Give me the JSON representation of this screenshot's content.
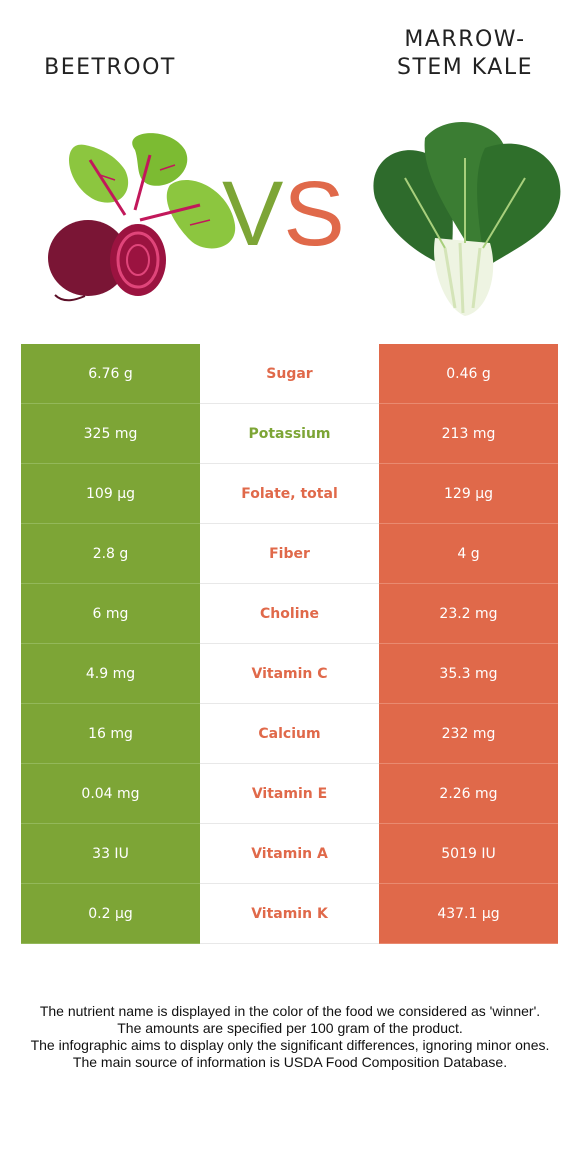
{
  "foods": {
    "left": {
      "name": "BEETROOT",
      "color": "#7da536"
    },
    "right": {
      "name_line1": "MARROW-",
      "name_line2": "STEM KALE",
      "color": "#e0694a"
    }
  },
  "vs": {
    "v": "V",
    "s": "S"
  },
  "rows": [
    {
      "nutrient": "Sugar",
      "left": "6.76 g",
      "right": "0.46 g",
      "winner": "right"
    },
    {
      "nutrient": "Potassium",
      "left": "325 mg",
      "right": "213 mg",
      "winner": "left"
    },
    {
      "nutrient": "Folate, total",
      "left": "109 µg",
      "right": "129 µg",
      "winner": "right"
    },
    {
      "nutrient": "Fiber",
      "left": "2.8 g",
      "right": "4 g",
      "winner": "right"
    },
    {
      "nutrient": "Choline",
      "left": "6 mg",
      "right": "23.2 mg",
      "winner": "right"
    },
    {
      "nutrient": "Vitamin C",
      "left": "4.9 mg",
      "right": "35.3 mg",
      "winner": "right"
    },
    {
      "nutrient": "Calcium",
      "left": "16 mg",
      "right": "232 mg",
      "winner": "right"
    },
    {
      "nutrient": "Vitamin E",
      "left": "0.04 mg",
      "right": "2.26 mg",
      "winner": "right"
    },
    {
      "nutrient": "Vitamin A",
      "left": "33 IU",
      "right": "5019 IU",
      "winner": "right"
    },
    {
      "nutrient": "Vitamin K",
      "left": "0.2 µg",
      "right": "437.1 µg",
      "winner": "right"
    }
  ],
  "footer": {
    "line1": "The nutrient name is displayed in the color of the food we considered as 'winner'.",
    "line2": "The amounts are specified per 100 gram of the product.",
    "line3": "The infographic aims to display only the significant differences, ignoring minor ones.",
    "line4": "The main source of information is USDA Food Composition Database."
  }
}
